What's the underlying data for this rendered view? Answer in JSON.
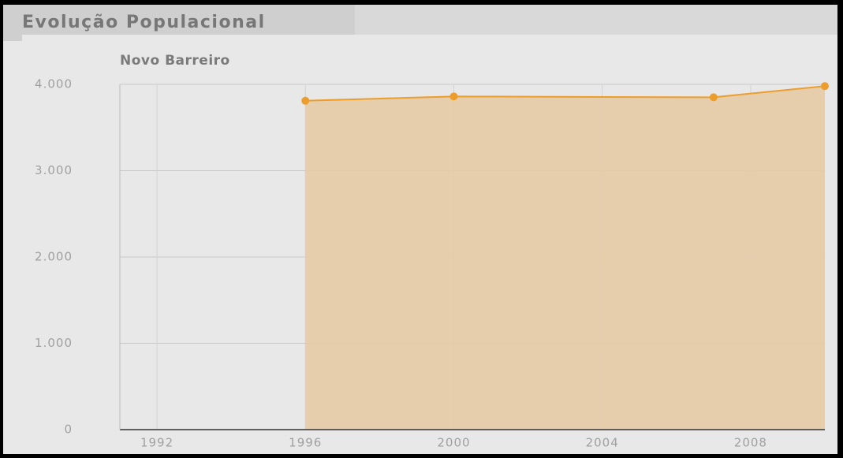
{
  "chart_data": {
    "type": "area",
    "title": "Evolução Populacional",
    "x": [
      1996,
      2000,
      2007,
      2010
    ],
    "series": [
      {
        "name": "Novo Barreiro",
        "color": "#ec9d2c",
        "fill": "#e5cba6",
        "values": [
          3810,
          3860,
          3850,
          3980
        ]
      }
    ],
    "xlim": [
      1991,
      2010
    ],
    "xticks": [
      1992,
      1996,
      2000,
      2004,
      2008
    ],
    "ylim": [
      0,
      4000
    ],
    "yticks": [
      0,
      {
        "value": 1000,
        "label": "1.000"
      },
      {
        "value": 2000,
        "label": "2.000"
      },
      {
        "value": 3000,
        "label": "3.000"
      },
      {
        "value": 4000,
        "label": "4.000"
      }
    ],
    "grid": true
  }
}
